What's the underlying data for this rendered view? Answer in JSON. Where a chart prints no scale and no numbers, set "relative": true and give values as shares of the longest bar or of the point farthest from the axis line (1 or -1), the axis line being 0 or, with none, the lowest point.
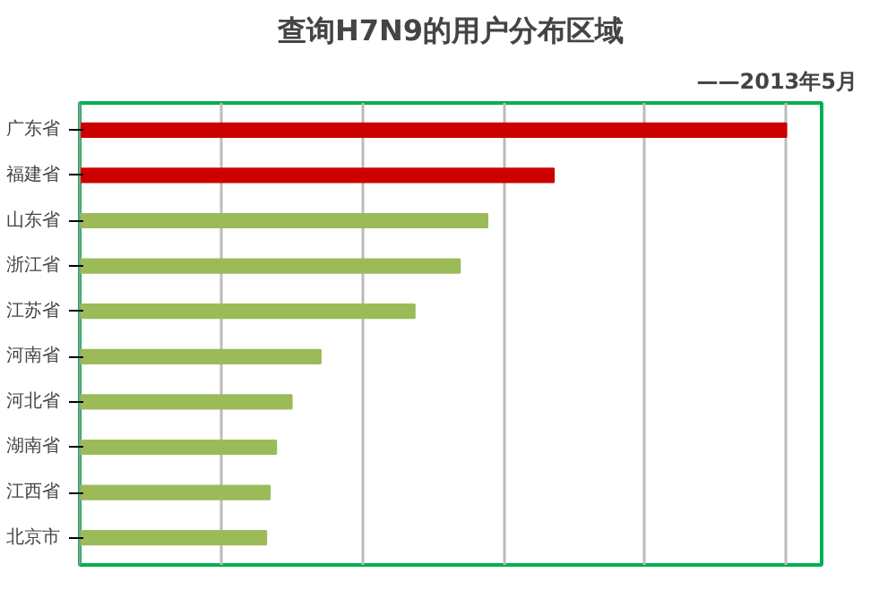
{
  "chart_data": {
    "type": "bar",
    "orientation": "horizontal",
    "relative": true,
    "title": "查询H7N9的用户分布区域",
    "subtitle": "——2013年5月",
    "categories": [
      "广东省",
      "福建省",
      "山东省",
      "浙江省",
      "江苏省",
      "河南省",
      "河北省",
      "湖南省",
      "江西省",
      "北京市"
    ],
    "values": [
      1,
      0.671,
      0.577,
      0.538,
      0.474,
      0.341,
      0.3,
      0.278,
      0.269,
      0.264
    ],
    "colors": [
      "#cc0000",
      "#cc0000",
      "#9bbb59",
      "#9bbb59",
      "#9bbb59",
      "#9bbb59",
      "#9bbb59",
      "#9bbb59",
      "#9bbb59",
      "#9bbb59"
    ],
    "grid": "x"
  }
}
